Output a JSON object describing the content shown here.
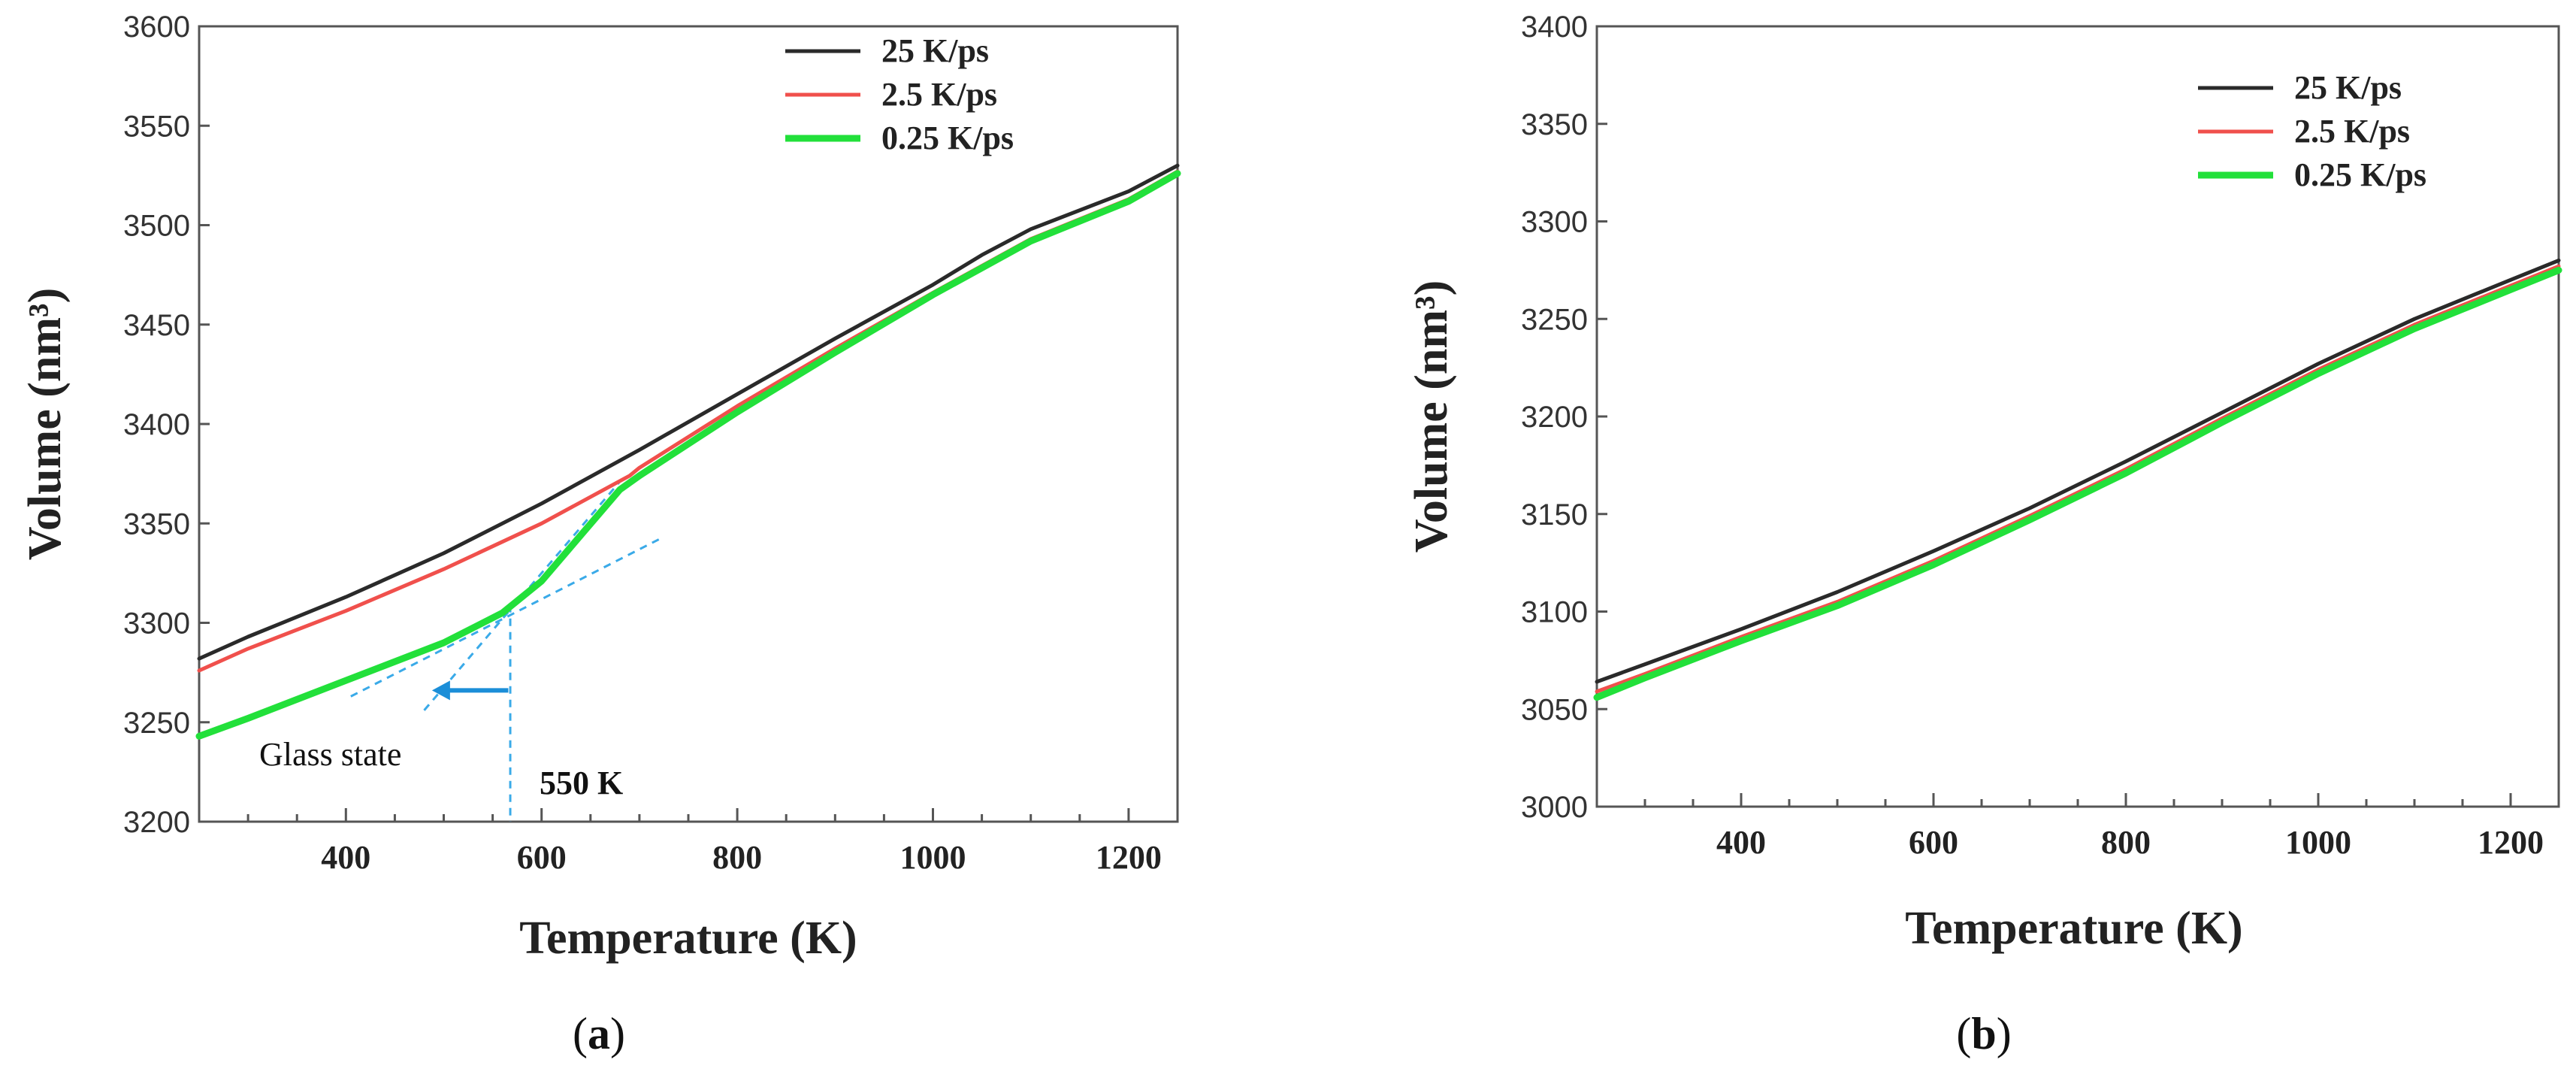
{
  "chart_data": [
    {
      "type": "line",
      "panel": "(a)",
      "panel_letter": "a",
      "xlabel": "Temperature (K)",
      "ylabel": "Volume (nm³)",
      "xlim": [
        250,
        1250
      ],
      "ylim": [
        3200,
        3600
      ],
      "xticks": [
        400,
        600,
        800,
        1000,
        1200
      ],
      "yticks": [
        3200,
        3250,
        3300,
        3350,
        3400,
        3450,
        3500,
        3550,
        3600
      ],
      "legend_position": "top-right",
      "series": [
        {
          "name": "25 K/ps",
          "color": "#2a2a2a",
          "x": [
            250,
            300,
            400,
            500,
            600,
            700,
            800,
            900,
            1000,
            1050,
            1100,
            1200,
            1250
          ],
          "y": [
            3282,
            3293,
            3313,
            3335,
            3360,
            3387,
            3415,
            3443,
            3470,
            3485,
            3498,
            3517,
            3530
          ]
        },
        {
          "name": "2.5 K/ps",
          "color": "#f0504c",
          "x": [
            250,
            300,
            400,
            500,
            600,
            690,
            700,
            800,
            900,
            1000,
            1100,
            1200,
            1250
          ],
          "y": [
            3276,
            3287,
            3306,
            3327,
            3350,
            3374,
            3378,
            3409,
            3438,
            3466,
            3493,
            3513,
            3527
          ]
        },
        {
          "name": "0.25 K/ps",
          "color": "#22e03a",
          "x": [
            250,
            300,
            400,
            500,
            560,
            600,
            640,
            680,
            700,
            800,
            900,
            1000,
            1100,
            1200,
            1250
          ],
          "y": [
            3243,
            3252,
            3271,
            3290,
            3305,
            3321,
            3344,
            3367,
            3374,
            3406,
            3436,
            3465,
            3492,
            3512,
            3526
          ]
        }
      ],
      "annotations": {
        "glass_state_label": "Glass state",
        "temperature_label": "550 K",
        "tangent_color": "#3aaae8",
        "arrow_color": "#1b8ed8"
      }
    },
    {
      "type": "line",
      "panel": "(b)",
      "panel_letter": "b",
      "xlabel": "Temperature (K)",
      "ylabel": "Volume (nm³)",
      "xlim": [
        250,
        1250
      ],
      "ylim": [
        3000,
        3400
      ],
      "xticks": [
        400,
        600,
        800,
        1000,
        1200
      ],
      "yticks": [
        3000,
        3050,
        3100,
        3150,
        3200,
        3250,
        3300,
        3350,
        3400
      ],
      "legend_position": "top-right",
      "series": [
        {
          "name": "25 K/ps",
          "color": "#2a2a2a",
          "x": [
            250,
            300,
            400,
            500,
            600,
            700,
            800,
            900,
            1000,
            1100,
            1200,
            1250
          ],
          "y": [
            3064,
            3073,
            3091,
            3110,
            3131,
            3153,
            3177,
            3202,
            3227,
            3250,
            3270,
            3280
          ]
        },
        {
          "name": "2.5 K/ps",
          "color": "#f0504c",
          "x": [
            250,
            300,
            400,
            500,
            600,
            700,
            800,
            900,
            1000,
            1100,
            1200,
            1250
          ],
          "y": [
            3059,
            3068,
            3087,
            3105,
            3126,
            3149,
            3173,
            3199,
            3224,
            3247,
            3267,
            3277
          ]
        },
        {
          "name": "0.25 K/ps",
          "color": "#22e03a",
          "x": [
            250,
            300,
            400,
            500,
            600,
            700,
            800,
            900,
            1000,
            1100,
            1200,
            1250
          ],
          "y": [
            3056,
            3066,
            3085,
            3103,
            3124,
            3147,
            3171,
            3197,
            3222,
            3245,
            3265,
            3275
          ]
        }
      ]
    }
  ]
}
